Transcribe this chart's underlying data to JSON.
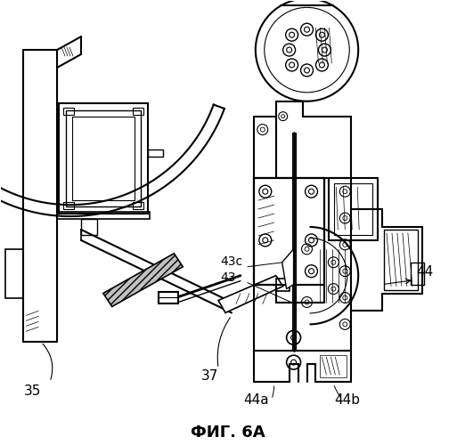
{
  "title": "ФИГ. 6А",
  "title_fontsize": 13,
  "title_fontweight": "bold",
  "background_color": "#ffffff",
  "line_color": "#000000",
  "label_35": "35",
  "label_37": "37",
  "label_43": "43",
  "label_43c": "43c",
  "label_44": "44",
  "label_44a": "44a",
  "label_44b": "44b",
  "figsize": [
    5.13,
    5.0
  ],
  "dpi": 100
}
